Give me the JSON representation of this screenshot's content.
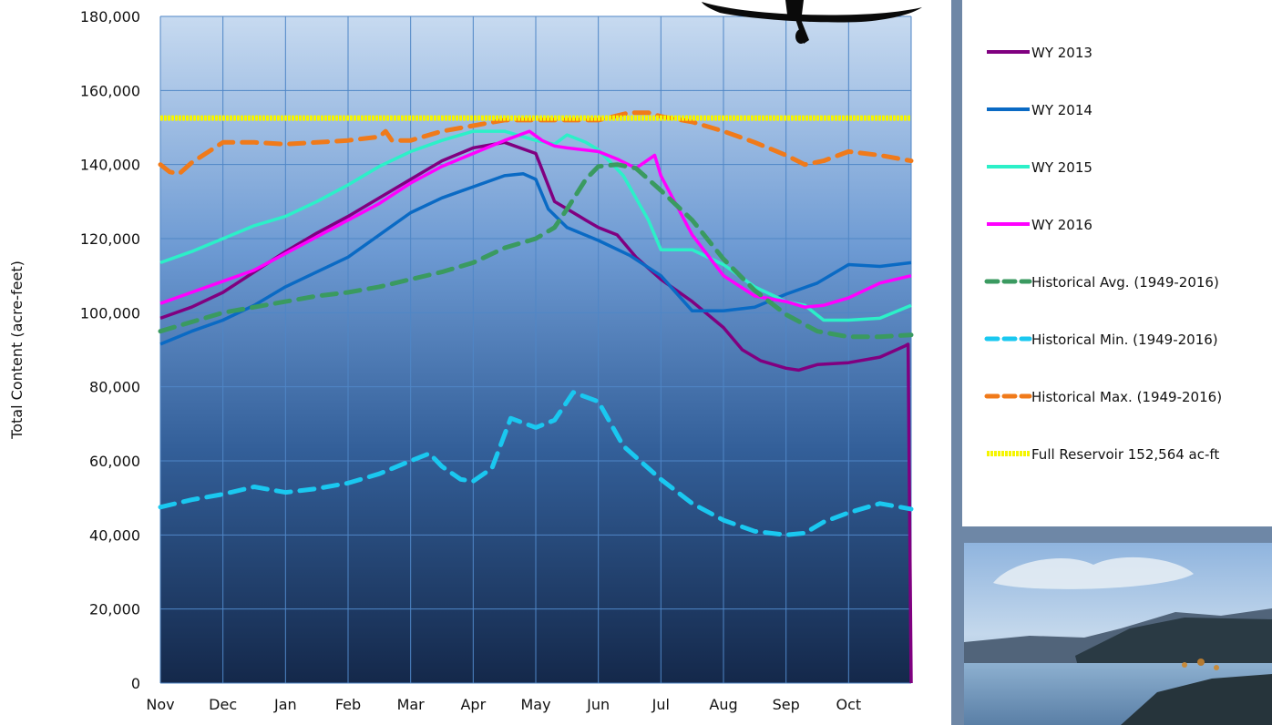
{
  "chart_data": {
    "type": "line",
    "ylabel": "Total Content (acre-feet)",
    "ylim": [
      0,
      180000
    ],
    "yticks": [
      "0",
      "20,000",
      "40,000",
      "60,000",
      "80,000",
      "100,000",
      "120,000",
      "140,000",
      "160,000",
      "180,000"
    ],
    "xlabels": [
      "Nov",
      "Dec",
      "Jan",
      "Feb",
      "Mar",
      "Apr",
      "May",
      "Jun",
      "Jul",
      "Aug",
      "Sep",
      "Oct"
    ],
    "x_domain": [
      0,
      12
    ],
    "grid": true,
    "legend_position": "right",
    "colors": {
      "plot_top": "#c7daf0",
      "plot_mid": "#4a7fc0",
      "plot_bottom": "#14284a",
      "side_panel": "#6e87a6"
    },
    "series": [
      {
        "name": "WY 2013",
        "color": "#800080",
        "dash": "solid",
        "x": [
          0,
          0.5,
          1,
          1.5,
          2,
          2.5,
          3,
          3.5,
          4,
          4.5,
          5,
          5.5,
          6,
          6.3,
          6.6,
          6.8,
          7,
          7.3,
          7.6,
          8,
          8.5,
          9,
          9.3,
          9.6,
          10,
          10.2,
          10.5,
          11,
          11.5,
          11.9,
          11.95,
          12
        ],
        "y": [
          98500,
          101500,
          105500,
          111000,
          116500,
          121500,
          126000,
          131000,
          136000,
          141000,
          144500,
          146000,
          143000,
          130000,
          127000,
          125000,
          123000,
          121000,
          115000,
          109000,
          103000,
          96000,
          90000,
          87000,
          85000,
          84500,
          86000,
          86500,
          88000,
          91000,
          91500,
          0
        ]
      },
      {
        "name": "WY 2014",
        "color": "#0a6ac4",
        "dash": "solid",
        "x": [
          0,
          0.5,
          1,
          1.5,
          2,
          2.5,
          3,
          3.5,
          4,
          4.5,
          5,
          5.5,
          5.8,
          6,
          6.2,
          6.5,
          7,
          7.5,
          8,
          8.5,
          9,
          9.5,
          10,
          10.5,
          11,
          11.5,
          12
        ],
        "y": [
          91500,
          95000,
          98000,
          102000,
          107000,
          111000,
          115000,
          121000,
          127000,
          131000,
          134000,
          137000,
          137500,
          136000,
          128000,
          123000,
          119500,
          115500,
          110000,
          100500,
          100500,
          101500,
          105000,
          108000,
          113000,
          112500,
          113500
        ]
      },
      {
        "name": "WY 2015",
        "color": "#2cf0c8",
        "dash": "solid",
        "x": [
          0,
          0.5,
          1,
          1.5,
          2,
          2.5,
          3,
          3.5,
          4,
          4.5,
          5,
          5.5,
          6,
          6.3,
          6.5,
          6.8,
          7,
          7.4,
          7.8,
          8,
          8.5,
          9,
          9.5,
          10,
          10.3,
          10.6,
          11,
          11.5,
          12
        ],
        "y": [
          113500,
          116500,
          120000,
          123500,
          126000,
          130000,
          134500,
          139500,
          143500,
          146500,
          149000,
          149000,
          146500,
          145500,
          148000,
          146000,
          144000,
          137000,
          125000,
          117000,
          117000,
          113000,
          107000,
          103000,
          102000,
          98000,
          98000,
          98500,
          102000
        ]
      },
      {
        "name": "WY 2016",
        "color": "#ff00ff",
        "dash": "solid",
        "x": [
          0,
          0.5,
          1,
          1.5,
          2,
          2.5,
          3,
          3.5,
          4,
          4.5,
          5,
          5.5,
          5.9,
          6.1,
          6.3,
          6.5,
          7,
          7.3,
          7.6,
          7.9,
          8,
          8.5,
          9,
          9.5,
          10,
          10.3,
          10.6,
          11,
          11.5,
          12
        ],
        "y": [
          102500,
          105500,
          108500,
          111500,
          116000,
          120500,
          125000,
          129500,
          135000,
          139500,
          143000,
          146500,
          149000,
          146500,
          145000,
          144500,
          143500,
          141500,
          139000,
          142500,
          137000,
          121000,
          110000,
          104500,
          103000,
          101500,
          102000,
          104000,
          108000,
          110000
        ]
      },
      {
        "name": "Historical Avg.  (1949-2016)",
        "color": "#3a9a60",
        "dash": "dash",
        "x": [
          0,
          0.5,
          1,
          1.5,
          2,
          2.5,
          3,
          3.5,
          4,
          4.5,
          5,
          5.5,
          6,
          6.3,
          6.5,
          6.8,
          7,
          7.3,
          7.6,
          8,
          8.5,
          9,
          9.5,
          10,
          10.5,
          11,
          11.5,
          12
        ],
        "y": [
          95000,
          97500,
          100000,
          101500,
          103000,
          104500,
          105500,
          107000,
          109000,
          111000,
          113500,
          117500,
          120000,
          123000,
          128000,
          136000,
          139500,
          140000,
          139000,
          133000,
          125000,
          114500,
          106000,
          99500,
          95000,
          93500,
          93500,
          94000
        ]
      },
      {
        "name": "Historical Min.  (1949-2016)",
        "color": "#1ac8f0",
        "dash": "dash",
        "x": [
          0,
          0.5,
          1,
          1.5,
          2,
          2.5,
          3,
          3.5,
          4,
          4.3,
          4.5,
          4.8,
          5,
          5.3,
          5.6,
          6,
          6.3,
          6.6,
          7,
          7.4,
          8,
          8.5,
          9,
          9.5,
          10,
          10.3,
          10.6,
          11,
          11.5,
          12
        ],
        "y": [
          47500,
          49500,
          51000,
          53000,
          51500,
          52500,
          54000,
          56500,
          60000,
          62000,
          58500,
          55000,
          54500,
          58000,
          71500,
          69000,
          71000,
          78500,
          76000,
          64000,
          55000,
          48500,
          44000,
          41000,
          40000,
          40500,
          43500,
          46000,
          48500,
          47000
        ]
      },
      {
        "name": "Historical Max. (1949-2016)",
        "color": "#f07a1a",
        "dash": "dash",
        "x": [
          0,
          0.15,
          0.3,
          0.5,
          1,
          1.5,
          2,
          2.5,
          3,
          3.5,
          3.6,
          3.7,
          3.8,
          4,
          4.5,
          5,
          5.5,
          6,
          6.5,
          7,
          7.5,
          7.8,
          8,
          8.5,
          9,
          9.5,
          10,
          10.3,
          10.6,
          11,
          11.5,
          12
        ],
        "y": [
          140000,
          138000,
          137500,
          140500,
          146000,
          146000,
          145500,
          146000,
          146500,
          147500,
          149000,
          146500,
          146500,
          146500,
          149000,
          150500,
          152000,
          152000,
          152000,
          152000,
          154000,
          154000,
          153000,
          151500,
          149000,
          146000,
          142500,
          140000,
          141000,
          143500,
          142500,
          141000
        ]
      },
      {
        "name": "Full Reservoir 152,564 ac-ft",
        "color": "#f5f500",
        "dash": "dot",
        "x": [
          0,
          12
        ],
        "y": [
          152564,
          152564
        ]
      }
    ]
  }
}
